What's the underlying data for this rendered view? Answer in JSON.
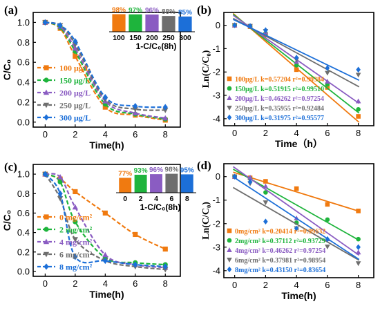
{
  "colors": {
    "orange": "#F07A10",
    "green": "#1EB43C",
    "purple": "#8A5CC2",
    "grey": "#6E6E6E",
    "blue": "#1C6FD8",
    "axis": "#000000"
  },
  "chart_data": [
    {
      "panel": "(a)",
      "type": "line",
      "ylabel": "C/C₀",
      "xlabel": "Time(h)",
      "xlim": [
        -0.8,
        9
      ],
      "ylim": [
        -0.05,
        1.1
      ],
      "x_ticks": [
        0,
        2,
        4,
        6,
        8
      ],
      "y_ticks": [
        0.0,
        0.2,
        0.4,
        0.6,
        0.8,
        1.0
      ],
      "y_tick_labels": [
        "0.0",
        "0.2",
        "0.4",
        "0.6",
        "0.8",
        "1.0"
      ],
      "x": [
        0,
        1,
        2,
        4,
        6,
        8
      ],
      "legend_position": "bottom-left",
      "series": [
        {
          "name": "100 μg/L",
          "color": "#F07A10",
          "marker": "square",
          "values": [
            1.0,
            0.94,
            0.66,
            0.15,
            0.07,
            0.02
          ]
        },
        {
          "name": "150 μg/L",
          "color": "#1EB43C",
          "marker": "circle",
          "values": [
            1.0,
            0.95,
            0.71,
            0.18,
            0.08,
            0.03
          ]
        },
        {
          "name": "200 μg/L",
          "color": "#8A5CC2",
          "marker": "triangle-up",
          "values": [
            1.0,
            0.96,
            0.74,
            0.21,
            0.09,
            0.04
          ]
        },
        {
          "name": "250 μg/L",
          "color": "#6E6E6E",
          "marker": "triangle-down",
          "values": [
            1.0,
            0.97,
            0.78,
            0.23,
            0.13,
            0.12
          ]
        },
        {
          "name": "300 μg/L",
          "color": "#1C6FD8",
          "marker": "diamond",
          "values": [
            1.0,
            0.97,
            0.81,
            0.25,
            0.16,
            0.15
          ]
        }
      ],
      "inset": {
        "type": "bar",
        "xlabel": "1-C/C₀(8h)",
        "categories": [
          "100",
          "150",
          "200",
          "250",
          "300"
        ],
        "values": [
          0.98,
          0.97,
          0.96,
          0.88,
          0.85
        ],
        "labels": [
          "98%",
          "97%",
          "96%",
          "88%",
          "85%"
        ],
        "colors": [
          "#F07A10",
          "#1EB43C",
          "#8A5CC2",
          "#6E6E6E",
          "#1C6FD8"
        ]
      }
    },
    {
      "panel": "(b)",
      "type": "scatter",
      "ylabel": "Ln(C/C₀)",
      "xlabel": "Time（h）",
      "xlim": [
        -0.7,
        9
      ],
      "ylim": [
        -4.3,
        0.55
      ],
      "x_ticks": [
        0,
        2,
        4,
        6,
        8
      ],
      "y_ticks": [
        -4,
        -3,
        -2,
        -1,
        0
      ],
      "y_tick_labels": [
        "-4",
        "-3",
        "-2",
        "-1",
        "0"
      ],
      "x": [
        0,
        1,
        2,
        4,
        6,
        8
      ],
      "legend_position": "bottom-left",
      "series": [
        {
          "name": "100μg/L k=0.57204 r²=0.99384",
          "color": "#F07A10",
          "marker": "square",
          "values": [
            0,
            -0.06,
            -0.42,
            -1.9,
            -2.66,
            -3.9
          ],
          "fit": {
            "k": 0.57204,
            "b": 0.45
          }
        },
        {
          "name": "150μg/L k=0.51915 r²=0.99510",
          "color": "#1EB43C",
          "marker": "circle",
          "values": [
            0,
            -0.05,
            -0.34,
            -1.71,
            -2.53,
            -3.6
          ],
          "fit": {
            "k": 0.51915,
            "b": 0.42
          }
        },
        {
          "name": "200μg/L k=0.46262 r²=0.97254",
          "color": "#8A5CC2",
          "marker": "triangle-up",
          "values": [
            0,
            -0.04,
            -0.3,
            -1.56,
            -2.41,
            -3.25
          ],
          "fit": {
            "k": 0.46262,
            "b": 0.38
          }
        },
        {
          "name": "250μg/L k=0.35955 r²=0.92484",
          "color": "#6E6E6E",
          "marker": "triangle-down",
          "values": [
            0,
            -0.03,
            -0.25,
            -1.47,
            -2.04,
            -2.12
          ],
          "fit": {
            "k": 0.35955,
            "b": 0.26
          }
        },
        {
          "name": "300μg/L k=0.31975 r²=0.95577",
          "color": "#1C6FD8",
          "marker": "diamond",
          "values": [
            0,
            -0.03,
            -0.21,
            -1.39,
            -1.83,
            -1.9
          ],
          "fit": {
            "k": 0.31975,
            "b": 0.22
          }
        }
      ]
    },
    {
      "panel": "(c)",
      "type": "line",
      "ylabel": "C/C₀",
      "xlabel": "Time(h)",
      "xlim": [
        -0.8,
        9
      ],
      "ylim": [
        -0.05,
        1.1
      ],
      "x_ticks": [
        0,
        2,
        4,
        6,
        8
      ],
      "y_ticks": [
        0.0,
        0.2,
        0.4,
        0.6,
        0.8,
        1.0
      ],
      "y_tick_labels": [
        "0.0",
        "0.2",
        "0.4",
        "0.6",
        "0.8",
        "1.0"
      ],
      "x": [
        0,
        1,
        2,
        4,
        6,
        8
      ],
      "legend_position": "bottom-left",
      "series": [
        {
          "name": "0 mg/cm²",
          "color": "#F07A10",
          "marker": "square",
          "values": [
            1.0,
            0.95,
            0.82,
            0.6,
            0.38,
            0.23
          ]
        },
        {
          "name": "2 mg/cm²",
          "color": "#1EB43C",
          "marker": "circle",
          "values": [
            1.0,
            0.92,
            0.51,
            0.14,
            0.09,
            0.07
          ]
        },
        {
          "name": "4 mg/cm²",
          "color": "#8A5CC2",
          "marker": "triangle-up",
          "values": [
            1.0,
            0.97,
            0.66,
            0.17,
            0.07,
            0.04
          ]
        },
        {
          "name": "6 mg/cm²",
          "color": "#6E6E6E",
          "marker": "triangle-down",
          "values": [
            1.0,
            0.75,
            0.33,
            0.11,
            0.05,
            0.02
          ]
        },
        {
          "name": "8 mg/cm²",
          "color": "#1C6FD8",
          "marker": "diamond",
          "values": [
            1.0,
            0.8,
            0.15,
            0.11,
            0.07,
            0.05
          ]
        }
      ],
      "inset": {
        "type": "bar",
        "xlabel": "1-C/C₀(8h)",
        "categories": [
          "0",
          "2",
          "4",
          "6",
          "8"
        ],
        "values": [
          0.77,
          0.93,
          0.96,
          0.98,
          0.95
        ],
        "labels": [
          "77%",
          "93%",
          "96%",
          "98%",
          "95%"
        ],
        "colors": [
          "#F07A10",
          "#1EB43C",
          "#8A5CC2",
          "#6E6E6E",
          "#1C6FD8"
        ]
      }
    },
    {
      "panel": "(d)",
      "type": "scatter",
      "ylabel": "Ln(C/C₀)",
      "xlabel": "Time(h)",
      "xlim": [
        -0.7,
        9
      ],
      "ylim": [
        -4.3,
        0.55
      ],
      "x_ticks": [
        0,
        2,
        4,
        6,
        8
      ],
      "y_ticks": [
        -4,
        -3,
        -2,
        -1,
        0
      ],
      "y_tick_labels": [
        "-4",
        "-3",
        "-2",
        "-1",
        "0"
      ],
      "x": [
        0,
        1,
        2,
        4,
        6,
        8
      ],
      "legend_position": "bottom-left",
      "series": [
        {
          "name": "0mg/cm² k=0.20414 r²=0.99632",
          "color": "#F07A10",
          "marker": "square",
          "values": [
            0,
            -0.05,
            -0.2,
            -0.51,
            -1.18,
            -1.46
          ],
          "fit": {
            "k": 0.20414,
            "b": 0.17
          }
        },
        {
          "name": "2mg/cm² k=0.37112 r²=0.93729",
          "color": "#1EB43C",
          "marker": "circle",
          "values": [
            0,
            -0.08,
            -0.67,
            -1.96,
            -1.83,
            -2.66
          ],
          "fit": {
            "k": 0.37112,
            "b": 0.28
          }
        },
        {
          "name": "4mg/cm² k=0.46262 r²=0.97254",
          "color": "#8A5CC2",
          "marker": "triangle-up",
          "values": [
            0,
            -0.03,
            -0.41,
            -1.77,
            -2.66,
            -3.22
          ],
          "fit": {
            "k": 0.46262,
            "b": 0.38
          }
        },
        {
          "name": "6mg/cm² k=0.37981 r²=0.98954",
          "color": "#6E6E6E",
          "marker": "triangle-down",
          "values": [
            0,
            -0.29,
            -1.1,
            -2.2,
            -2.98,
            -3.69
          ],
          "fit": {
            "k": 0.37981,
            "b": -0.5
          }
        },
        {
          "name": "8mg/cm² k=0.43150 r²=0.83654",
          "color": "#1C6FD8",
          "marker": "diamond",
          "values": [
            0,
            -0.22,
            -1.91,
            -2.21,
            -2.66,
            -3.0
          ],
          "fit": {
            "k": 0.4315,
            "b": -0.05
          }
        }
      ]
    }
  ]
}
